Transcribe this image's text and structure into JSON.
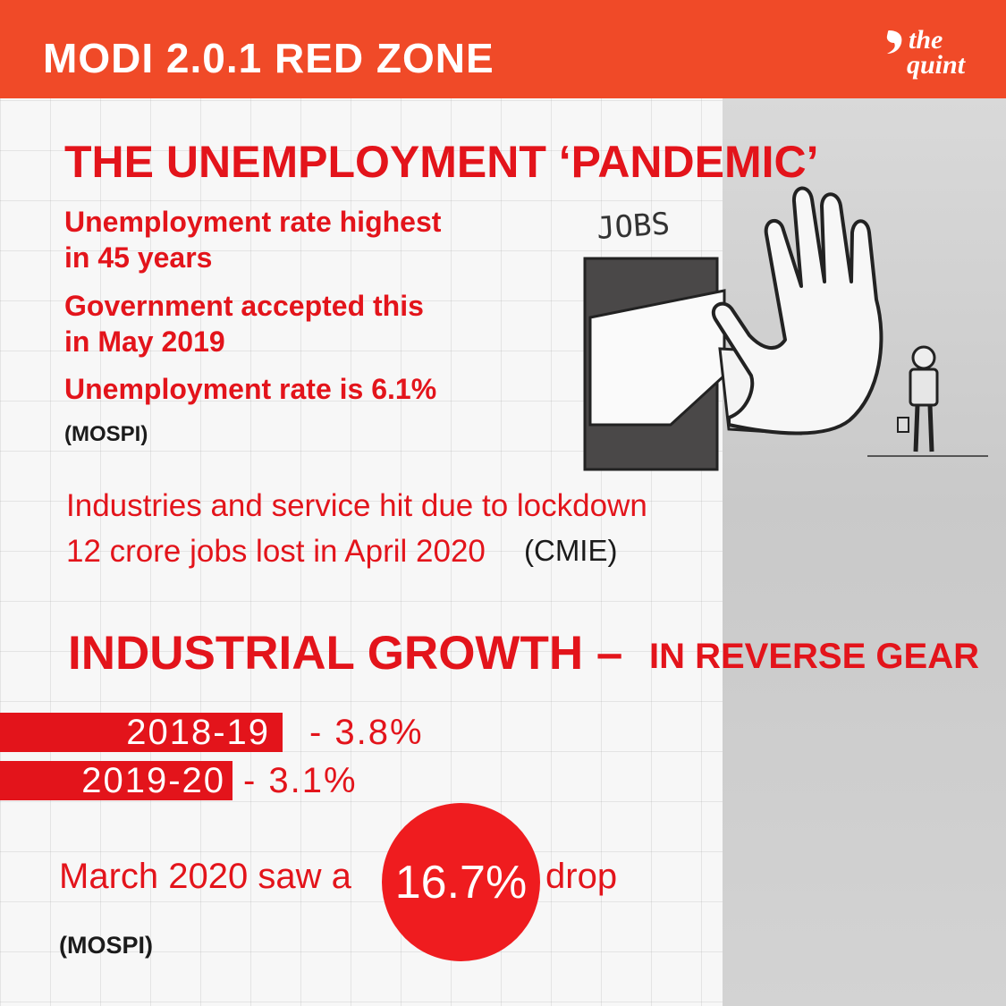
{
  "header": {
    "title": "MODI 2.0.1 RED ZONE",
    "logo_line1": "the",
    "logo_line2": "quint"
  },
  "unemployment": {
    "heading": "THE UNEMPLOYMENT ‘PANDEMIC’",
    "point1_line1": "Unemployment rate highest",
    "point1_line2": "in 45 years",
    "point2_line1": "Government accepted this",
    "point2_line2": "in May 2019",
    "point3": "Unemployment rate is 6.1%",
    "source": "(MOSPI)",
    "lockdown_line": "Industries and service hit due to lockdown",
    "jobs_line": "12 crore jobs lost in April 2020",
    "jobs_source": "(CMIE)",
    "illustration_label": "JOBS"
  },
  "industrial": {
    "heading_bold": "INDUSTRIAL GROWTH –",
    "heading_rest": "IN REVERSE GEAR",
    "rows": [
      {
        "year": "2018-19",
        "value": "- 3.8%"
      },
      {
        "year": "2019-20",
        "value": "- 3.1%"
      }
    ],
    "march_prefix": "March 2020 saw a",
    "march_value": "16.7%",
    "march_suffix": "drop",
    "source": "(MOSPI)"
  },
  "colors": {
    "banner": "#f04a28",
    "accent_red": "#e3141b",
    "panel_gray": "#d0d0d0"
  }
}
